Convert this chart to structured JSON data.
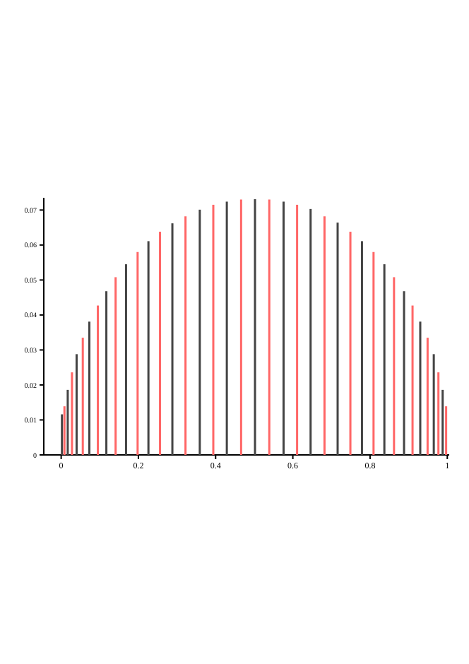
{
  "chart_data": {
    "type": "bar",
    "xlim": [
      -0.045,
      1.005
    ],
    "ylim": [
      0,
      0.0735
    ],
    "xticks": [
      0,
      0.2,
      0.4,
      0.6,
      0.8,
      1
    ],
    "yticks": [
      0,
      0.01,
      0.02,
      0.03,
      0.04,
      0.05,
      0.06,
      0.07
    ],
    "grid": false,
    "series": [
      {
        "color": "#444444",
        "x": [
          0.002,
          0.017,
          0.04,
          0.073,
          0.117,
          0.168,
          0.226,
          0.288,
          0.359,
          0.429,
          0.502,
          0.576,
          0.646,
          0.716,
          0.779,
          0.837,
          0.888,
          0.93,
          0.965,
          0.988
        ],
        "values": [
          0.0116,
          0.0186,
          0.0288,
          0.0381,
          0.0468,
          0.0545,
          0.0611,
          0.0662,
          0.0701,
          0.0724,
          0.0731,
          0.0724,
          0.0703,
          0.0664,
          0.0611,
          0.0545,
          0.0468,
          0.0381,
          0.0288,
          0.0186
        ]
      },
      {
        "color": "#ff6666",
        "x": [
          0.0085,
          0.028,
          0.056,
          0.095,
          0.141,
          0.198,
          0.256,
          0.322,
          0.394,
          0.466,
          0.539,
          0.611,
          0.682,
          0.749,
          0.809,
          0.862,
          0.91,
          0.949,
          0.977,
          0.997
        ],
        "values": [
          0.0139,
          0.0236,
          0.0335,
          0.0427,
          0.0508,
          0.058,
          0.0638,
          0.0682,
          0.0715,
          0.073,
          0.073,
          0.0715,
          0.0682,
          0.0638,
          0.058,
          0.0508,
          0.0427,
          0.0335,
          0.0236,
          0.0139
        ]
      }
    ]
  }
}
